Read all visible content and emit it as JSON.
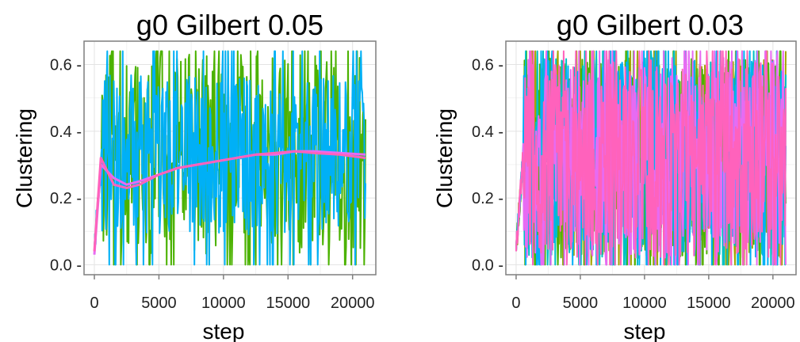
{
  "chart_data": [
    {
      "type": "line",
      "title": "g0  Gilbert 0.05",
      "xlabel": "step",
      "ylabel": "Clustering",
      "xlim": [
        -800,
        21800
      ],
      "ylim": [
        -0.03,
        0.67
      ],
      "x_ticks": [
        0,
        5000,
        10000,
        15000,
        20000
      ],
      "x_tick_labels": [
        "0",
        "5000",
        "10000",
        "15000",
        "20000"
      ],
      "y_ticks": [
        0.0,
        0.2,
        0.4,
        0.6
      ],
      "y_tick_labels": [
        "0.0 -",
        "0.2 -",
        "0.4 -",
        "0.6 -"
      ],
      "grid": true,
      "legend": "none",
      "series": [
        {
          "color": "#4bb200",
          "x_range": [
            0,
            21000
          ],
          "mean": 0.33,
          "spread": 0.3,
          "ymin": 0.0,
          "ymax": 0.64
        },
        {
          "color": "#00b0f6",
          "x_range": [
            0,
            21000
          ],
          "mean": 0.33,
          "spread": 0.24,
          "ymin": 0.0,
          "ymax": 0.64
        },
        {
          "color": "#e76bf3",
          "x_range": [
            0,
            21000
          ],
          "smooth": true,
          "values_y": [
            0.03,
            0.3,
            0.26,
            0.24,
            0.25,
            0.27,
            0.29,
            0.3,
            0.31,
            0.32,
            0.33,
            0.33,
            0.34,
            0.34,
            0.335,
            0.33
          ],
          "values_x": [
            0,
            500,
            1500,
            2500,
            3500,
            5000,
            6500,
            8000,
            9500,
            11000,
            12500,
            14000,
            15500,
            17000,
            19000,
            21000
          ]
        },
        {
          "color": "#ff62bc",
          "x_range": [
            0,
            21000
          ],
          "smooth": true,
          "values_y": [
            0.04,
            0.32,
            0.24,
            0.23,
            0.24,
            0.27,
            0.29,
            0.3,
            0.31,
            0.32,
            0.33,
            0.335,
            0.34,
            0.335,
            0.33,
            0.32
          ],
          "values_x": [
            0,
            500,
            1500,
            2500,
            3500,
            5000,
            6500,
            8000,
            9500,
            11000,
            12500,
            14000,
            15500,
            17000,
            19000,
            21000
          ]
        }
      ]
    },
    {
      "type": "line",
      "title": "g0  Gilbert 0.03",
      "xlabel": "step",
      "ylabel": "Clustering",
      "xlim": [
        -800,
        21800
      ],
      "ylim": [
        -0.03,
        0.67
      ],
      "x_ticks": [
        0,
        5000,
        10000,
        15000,
        20000
      ],
      "x_tick_labels": [
        "0",
        "5000",
        "10000",
        "15000",
        "20000"
      ],
      "y_ticks": [
        0.0,
        0.2,
        0.4,
        0.6
      ],
      "y_tick_labels": [
        "0.0 -",
        "0.2 -",
        "0.4 -",
        "0.6 -"
      ],
      "grid": true,
      "legend": "none",
      "series": [
        {
          "color": "#a3a500",
          "x_range": [
            0,
            21000
          ],
          "mean": 0.32,
          "spread": 0.3,
          "ymin": 0.0,
          "ymax": 0.64
        },
        {
          "color": "#4bb200",
          "x_range": [
            0,
            21000
          ],
          "mean": 0.32,
          "spread": 0.3,
          "ymin": 0.0,
          "ymax": 0.64
        },
        {
          "color": "#00bfc4",
          "x_range": [
            0,
            21000
          ],
          "mean": 0.32,
          "spread": 0.3,
          "ymin": 0.0,
          "ymax": 0.64
        },
        {
          "color": "#00b0f6",
          "x_range": [
            0,
            21000
          ],
          "mean": 0.32,
          "spread": 0.3,
          "ymin": 0.0,
          "ymax": 0.64
        },
        {
          "color": "#e76bf3",
          "x_range": [
            0,
            21000
          ],
          "mean": 0.32,
          "spread": 0.3,
          "ymin": 0.0,
          "ymax": 0.64
        },
        {
          "color": "#ff62bc",
          "x_range": [
            0,
            21000
          ],
          "mean": 0.32,
          "spread": 0.3,
          "ymin": 0.0,
          "ymax": 0.64
        }
      ]
    }
  ]
}
